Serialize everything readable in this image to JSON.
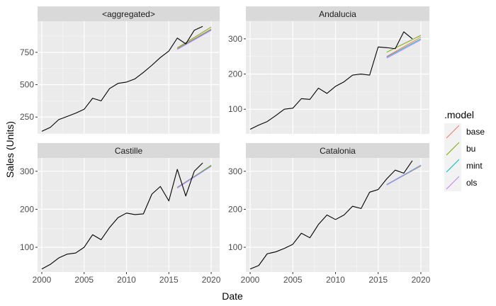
{
  "chart_data": {
    "type": "line",
    "xlabel": "Date",
    "ylabel": "Sales (Units)",
    "x_ticks": [
      2000,
      2005,
      2010,
      2015,
      2020
    ],
    "xlim": [
      1999.5,
      2021
    ],
    "legend": {
      "title": ".model",
      "placement": "right",
      "entries": [
        {
          "name": "base",
          "color": "#F8766D"
        },
        {
          "name": "bu",
          "color": "#7CAE00"
        },
        {
          "name": "mint",
          "color": "#00BFC4"
        },
        {
          "name": "ols",
          "color": "#C77CFF"
        }
      ]
    },
    "actual_color": "#000000",
    "panels": [
      {
        "strip": "<aggregated>",
        "ylim": [
          120,
          990
        ],
        "y_ticks": [
          250,
          500,
          750
        ],
        "actual": {
          "x": [
            2000,
            2001,
            2002,
            2003,
            2004,
            2005,
            2006,
            2007,
            2008,
            2009,
            2010,
            2011,
            2012,
            2013,
            2014,
            2015,
            2016,
            2017,
            2018,
            2019
          ],
          "y": [
            140,
            170,
            230,
            255,
            280,
            310,
            395,
            375,
            470,
            510,
            520,
            545,
            595,
            650,
            710,
            760,
            860,
            815,
            920,
            950
          ]
        },
        "forecasts": [
          {
            "name": "base",
            "x": [
              2016,
              2020
            ],
            "y": [
              780,
              930
            ]
          },
          {
            "name": "bu",
            "x": [
              2016,
              2020
            ],
            "y": [
              785,
              945
            ]
          },
          {
            "name": "mint",
            "x": [
              2016,
              2020
            ],
            "y": [
              775,
              925
            ]
          },
          {
            "name": "ols",
            "x": [
              2016,
              2020
            ],
            "y": [
              772,
              920
            ]
          }
        ]
      },
      {
        "strip": "Andalucia",
        "ylim": [
          30,
          350
        ],
        "y_ticks": [
          100,
          200,
          300
        ],
        "actual": {
          "x": [
            2000,
            2001,
            2002,
            2003,
            2004,
            2005,
            2006,
            2007,
            2008,
            2009,
            2010,
            2011,
            2012,
            2013,
            2014,
            2015,
            2016,
            2017,
            2018,
            2019
          ],
          "y": [
            43,
            55,
            65,
            82,
            100,
            103,
            130,
            128,
            160,
            145,
            165,
            178,
            197,
            200,
            197,
            277,
            275,
            272,
            320,
            300
          ]
        },
        "forecasts": [
          {
            "name": "base",
            "x": [
              2016,
              2020
            ],
            "y": [
              250,
              305
            ]
          },
          {
            "name": "bu",
            "x": [
              2016,
              2020
            ],
            "y": [
              262,
              310
            ]
          },
          {
            "name": "mint",
            "x": [
              2016,
              2020
            ],
            "y": [
              248,
              300
            ]
          },
          {
            "name": "ols",
            "x": [
              2016,
              2020
            ],
            "y": [
              245,
              297
            ]
          }
        ]
      },
      {
        "strip": "Castille",
        "ylim": [
          35,
          335
        ],
        "y_ticks": [
          100,
          200,
          300
        ],
        "actual": {
          "x": [
            2000,
            2001,
            2002,
            2003,
            2004,
            2005,
            2006,
            2007,
            2008,
            2009,
            2010,
            2011,
            2012,
            2013,
            2014,
            2015,
            2016,
            2017,
            2018,
            2019
          ],
          "y": [
            43,
            55,
            72,
            82,
            85,
            100,
            133,
            120,
            152,
            178,
            190,
            186,
            188,
            240,
            260,
            222,
            305,
            235,
            300,
            322
          ]
        },
        "forecasts": [
          {
            "name": "base",
            "x": [
              2016,
              2020
            ],
            "y": [
              258,
              315
            ]
          },
          {
            "name": "bu",
            "x": [
              2016,
              2020
            ],
            "y": [
              256,
              316
            ]
          },
          {
            "name": "mint",
            "x": [
              2016,
              2020
            ],
            "y": [
              257,
              314
            ]
          },
          {
            "name": "ols",
            "x": [
              2016,
              2020
            ],
            "y": [
              256,
              313
            ]
          }
        ]
      },
      {
        "strip": "Catalonia",
        "ylim": [
          35,
          335
        ],
        "y_ticks": [
          100,
          200,
          300
        ],
        "actual": {
          "x": [
            2000,
            2001,
            2002,
            2003,
            2004,
            2005,
            2006,
            2007,
            2008,
            2009,
            2010,
            2011,
            2012,
            2013,
            2014,
            2015,
            2016,
            2017,
            2018,
            2019
          ],
          "y": [
            43,
            52,
            83,
            88,
            97,
            108,
            137,
            125,
            160,
            185,
            173,
            185,
            208,
            202,
            245,
            252,
            280,
            303,
            295,
            328
          ]
        },
        "forecasts": [
          {
            "name": "base",
            "x": [
              2016,
              2020
            ],
            "y": [
              265,
              315
            ]
          },
          {
            "name": "bu",
            "x": [
              2016,
              2020
            ],
            "y": [
              264,
              314
            ]
          },
          {
            "name": "mint",
            "x": [
              2016,
              2020
            ],
            "y": [
              265,
              316
            ]
          },
          {
            "name": "ols",
            "x": [
              2016,
              2020
            ],
            "y": [
              264,
              315
            ]
          }
        ]
      }
    ]
  }
}
